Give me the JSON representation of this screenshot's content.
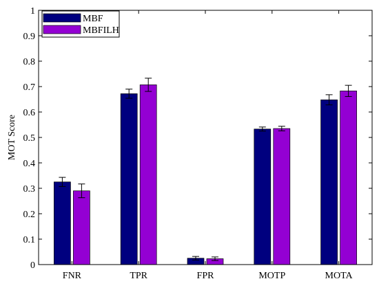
{
  "chart_data": {
    "type": "bar",
    "categories": [
      "FNR",
      "TPR",
      "FPR",
      "MOTP",
      "MOTA"
    ],
    "series": [
      {
        "name": "MBF",
        "color": "#00007f",
        "values": [
          0.325,
          0.672,
          0.025,
          0.533,
          0.648
        ],
        "errors": [
          0.018,
          0.018,
          0.007,
          0.008,
          0.02
        ]
      },
      {
        "name": "MBFILH",
        "color": "#9400d3",
        "values": [
          0.29,
          0.707,
          0.023,
          0.535,
          0.683
        ],
        "errors": [
          0.027,
          0.026,
          0.007,
          0.009,
          0.022
        ]
      }
    ],
    "title": "",
    "xlabel": "",
    "ylabel": "MOT Score",
    "ylim": [
      0,
      1
    ],
    "yticks": [
      "0",
      "0.1",
      "0.2",
      "0.3",
      "0.4",
      "0.5",
      "0.6",
      "0.7",
      "0.8",
      "0.9",
      "1"
    ],
    "grid": false,
    "legend_position": "top-left"
  }
}
